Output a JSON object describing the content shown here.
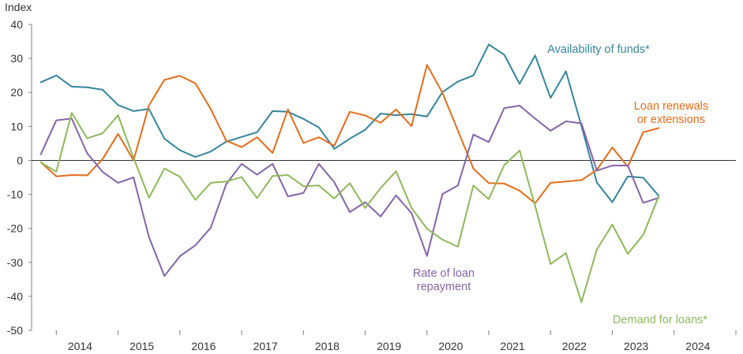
{
  "chart_data": {
    "type": "line",
    "ylabel": "Index",
    "ylim": [
      -50,
      40
    ],
    "yticks": [
      40,
      30,
      20,
      10,
      0,
      -10,
      -20,
      -30,
      -40,
      -50
    ],
    "xlim": [
      2013.6,
      2025.0
    ],
    "xticks": [
      2014,
      2015,
      2016,
      2017,
      2018,
      2019,
      2020,
      2021,
      2022,
      2023,
      2024
    ],
    "grid": false,
    "x": [
      2013.75,
      2014.0,
      2014.25,
      2014.5,
      2014.75,
      2015.0,
      2015.25,
      2015.5,
      2015.75,
      2016.0,
      2016.25,
      2016.5,
      2016.75,
      2017.0,
      2017.25,
      2017.5,
      2017.75,
      2018.0,
      2018.25,
      2018.5,
      2018.75,
      2019.0,
      2019.25,
      2019.5,
      2019.75,
      2020.0,
      2020.25,
      2020.5,
      2020.75,
      2021.0,
      2021.25,
      2021.5,
      2021.75,
      2022.0,
      2022.25,
      2022.5,
      2022.75,
      2023.0,
      2023.25,
      2023.5,
      2023.75
    ],
    "series": [
      {
        "name": "Availability of funds*",
        "label_lines": [
          "Availability of funds*"
        ],
        "color": "#35849b",
        "values": [
          23.0,
          25.0,
          21.7,
          21.5,
          20.8,
          16.3,
          14.5,
          15.1,
          6.4,
          3.0,
          1.0,
          2.6,
          5.5,
          6.9,
          8.3,
          14.5,
          14.3,
          12.2,
          9.7,
          3.4,
          6.4,
          9.0,
          13.8,
          13.3,
          13.6,
          12.9,
          20.1,
          23.2,
          25.0,
          34.1,
          31.1,
          22.5,
          30.9,
          18.4,
          26.2,
          10.1,
          -6.5,
          -12.3,
          -4.7,
          -5.1,
          -10.4
        ]
      },
      {
        "name": "Loan renewals or extensions",
        "label_lines": [
          "Loan renewals",
          "or extensions"
        ],
        "color": "#e36c1b",
        "values": [
          -0.5,
          -4.7,
          -4.3,
          -4.4,
          0.4,
          7.8,
          0.0,
          16.2,
          23.7,
          24.9,
          22.7,
          15.1,
          5.8,
          3.9,
          6.8,
          2.2,
          15.0,
          5.1,
          6.8,
          4.3,
          14.3,
          13.2,
          11.1,
          15.0,
          10.1,
          28.1,
          19.9,
          8.8,
          -2.4,
          -6.7,
          -6.8,
          -8.9,
          -12.6,
          -6.6,
          -6.2,
          -5.8,
          -2.8,
          3.8,
          -1.8,
          8.3,
          9.5
        ]
      },
      {
        "name": "Rate of loan repayment",
        "label_lines": [
          "Rate of loan",
          "repayment"
        ],
        "color": "#8464a8",
        "values": [
          1.8,
          11.8,
          12.3,
          2.1,
          -3.4,
          -6.6,
          -5.0,
          -22.6,
          -34.0,
          -28.2,
          -25.0,
          -19.8,
          -7.0,
          -1.0,
          -4.2,
          -1.0,
          -10.6,
          -9.6,
          -1.0,
          -6.4,
          -15.2,
          -12.3,
          -16.5,
          -10.3,
          -15.5,
          -28.1,
          -9.9,
          -7.4,
          7.6,
          5.4,
          15.4,
          16.1,
          12.3,
          8.7,
          11.5,
          10.9,
          -3.0,
          -1.5,
          -1.5,
          -12.5,
          -11.0
        ]
      },
      {
        "name": "Demand for loans*",
        "label_lines": [
          "Demand for loans*"
        ],
        "color": "#8db85b",
        "values": [
          -0.6,
          -3.3,
          14.0,
          6.5,
          8.0,
          13.3,
          0.8,
          -11.0,
          -2.4,
          -4.8,
          -11.6,
          -6.6,
          -6.2,
          -4.9,
          -11.1,
          -4.6,
          -4.3,
          -7.6,
          -7.4,
          -11.2,
          -6.7,
          -14.0,
          -8.1,
          -3.2,
          -14.0,
          -20.1,
          -23.3,
          -25.4,
          -7.4,
          -11.4,
          -1.4,
          2.9,
          -13.4,
          -30.5,
          -27.3,
          -41.7,
          -26.2,
          -18.9,
          -27.5,
          -21.9,
          -10.6
        ]
      }
    ]
  }
}
